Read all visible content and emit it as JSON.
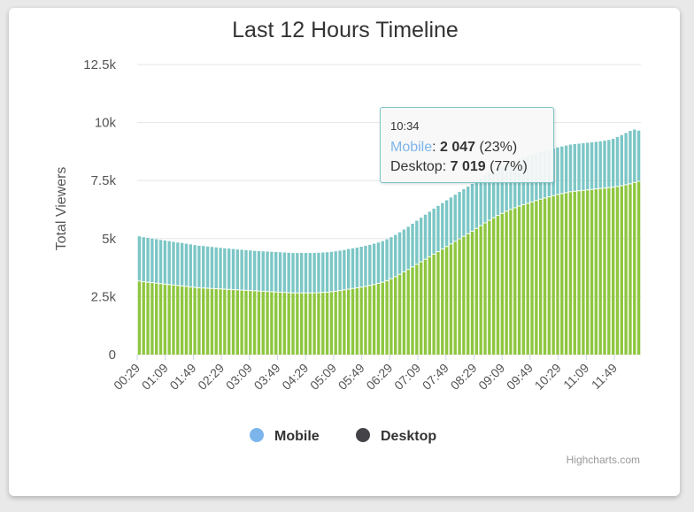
{
  "chart_data": {
    "type": "bar",
    "stacked": true,
    "title": "Last 12 Hours Timeline",
    "ylabel": "Total Viewers",
    "ylim": [
      0,
      12500
    ],
    "yticks": [
      "0",
      "2.5k",
      "5k",
      "7.5k",
      "10k",
      "12.5k"
    ],
    "ytick_values": [
      0,
      2500,
      5000,
      7500,
      10000,
      12500
    ],
    "grid": true,
    "legend_position": "bottom-center",
    "xtick_labels": [
      "00:29",
      "01:09",
      "01:49",
      "02:29",
      "03:09",
      "03:49",
      "04:29",
      "05:09",
      "05:49",
      "06:29",
      "07:09",
      "07:49",
      "08:29",
      "09:09",
      "09:49",
      "10:29",
      "11:09",
      "11:49"
    ],
    "series": [
      {
        "name": "Mobile",
        "color": "#7cc6c6",
        "legend_color": "#7cb5ec",
        "values": [
          1950,
          1940,
          1930,
          1920,
          1910,
          1900,
          1900,
          1890,
          1880,
          1870,
          1870,
          1860,
          1850,
          1840,
          1830,
          1830,
          1820,
          1810,
          1800,
          1790,
          1780,
          1780,
          1770,
          1760,
          1760,
          1750,
          1750,
          1740,
          1740,
          1740,
          1740,
          1740,
          1740,
          1740,
          1740,
          1740,
          1740,
          1740,
          1740,
          1740,
          1740,
          1740,
          1740,
          1740,
          1740,
          1740,
          1740,
          1740,
          1740,
          1750,
          1750,
          1750,
          1760,
          1770,
          1770,
          1780,
          1780,
          1790,
          1800,
          1810,
          1820,
          1830,
          1840,
          1860,
          1880,
          1900,
          1920,
          1940,
          1960,
          1980,
          1990,
          2000,
          2010,
          2020,
          2030,
          2040,
          2050,
          2050,
          2060,
          2060,
          2070,
          2070,
          2070,
          2070,
          2070,
          2070,
          2060,
          2060,
          2060,
          2050,
          2050,
          2050,
          2050,
          2050,
          2050,
          2050,
          2050,
          2050,
          2050,
          2050,
          2050,
          2050,
          2050,
          2050,
          2050,
          2050,
          2050,
          2050,
          2050,
          2060,
          2070,
          2100,
          2150,
          2200,
          2250,
          2300,
          2300,
          2200
        ],
        "tooltip_value": "2 047",
        "tooltip_pct": "(23%)"
      },
      {
        "name": "Desktop",
        "color": "#8ec63f",
        "legend_color": "#434348",
        "values": [
          3150,
          3120,
          3100,
          3080,
          3060,
          3040,
          3020,
          3000,
          2980,
          2960,
          2940,
          2920,
          2900,
          2880,
          2860,
          2850,
          2840,
          2830,
          2820,
          2810,
          2800,
          2790,
          2780,
          2770,
          2760,
          2750,
          2740,
          2730,
          2720,
          2710,
          2700,
          2690,
          2680,
          2670,
          2660,
          2650,
          2640,
          2640,
          2640,
          2640,
          2640,
          2640,
          2650,
          2660,
          2670,
          2690,
          2710,
          2740,
          2770,
          2800,
          2830,
          2860,
          2890,
          2920,
          2960,
          3000,
          3050,
          3100,
          3170,
          3250,
          3340,
          3440,
          3550,
          3650,
          3760,
          3870,
          3980,
          4090,
          4200,
          4310,
          4420,
          4530,
          4640,
          4750,
          4860,
          4970,
          5080,
          5190,
          5300,
          5420,
          5540,
          5660,
          5770,
          5880,
          5980,
          6070,
          6160,
          6240,
          6310,
          6380,
          6440,
          6500,
          6560,
          6620,
          6680,
          6730,
          6780,
          6830,
          6880,
          6920,
          6960,
          7000,
          7020,
          7040,
          7060,
          7080,
          7100,
          7120,
          7140,
          7160,
          7180,
          7200,
          7230,
          7260,
          7300,
          7340,
          7400,
          7450
        ],
        "tooltip_value": "7 019",
        "tooltip_pct": "(77%)"
      }
    ]
  },
  "tooltip": {
    "time": "10:34",
    "mobile_name": "Mobile",
    "mobile_value": "2 047",
    "mobile_pct": "(23%)",
    "desktop_name": "Desktop",
    "desktop_value": "7 019",
    "desktop_pct": "(77%)"
  },
  "credits": "Highcharts.com"
}
